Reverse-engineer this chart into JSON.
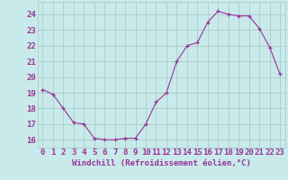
{
  "x": [
    0,
    1,
    2,
    3,
    4,
    5,
    6,
    7,
    8,
    9,
    10,
    11,
    12,
    13,
    14,
    15,
    16,
    17,
    18,
    19,
    20,
    21,
    22,
    23
  ],
  "y": [
    19.2,
    18.9,
    18.0,
    17.1,
    17.0,
    16.1,
    16.0,
    16.0,
    16.1,
    16.1,
    17.0,
    18.4,
    19.0,
    21.0,
    22.0,
    22.2,
    23.5,
    24.2,
    24.0,
    23.9,
    23.9,
    23.1,
    21.9,
    20.2
  ],
  "line_color": "#993399",
  "marker_color": "#993399",
  "bg_color": "#c8eaea",
  "grid_color": "#aacccc",
  "xlabel": "Windchill (Refroidissement éolien,°C)",
  "xlabel_color": "#993399",
  "ylabel_ticks": [
    16,
    17,
    18,
    19,
    20,
    21,
    22,
    23,
    24
  ],
  "ylim": [
    15.5,
    24.8
  ],
  "xlim": [
    -0.5,
    23.5
  ],
  "tick_label_color": "#993399",
  "font_size_xlabel": 6.5,
  "font_size_ticks": 6.5
}
